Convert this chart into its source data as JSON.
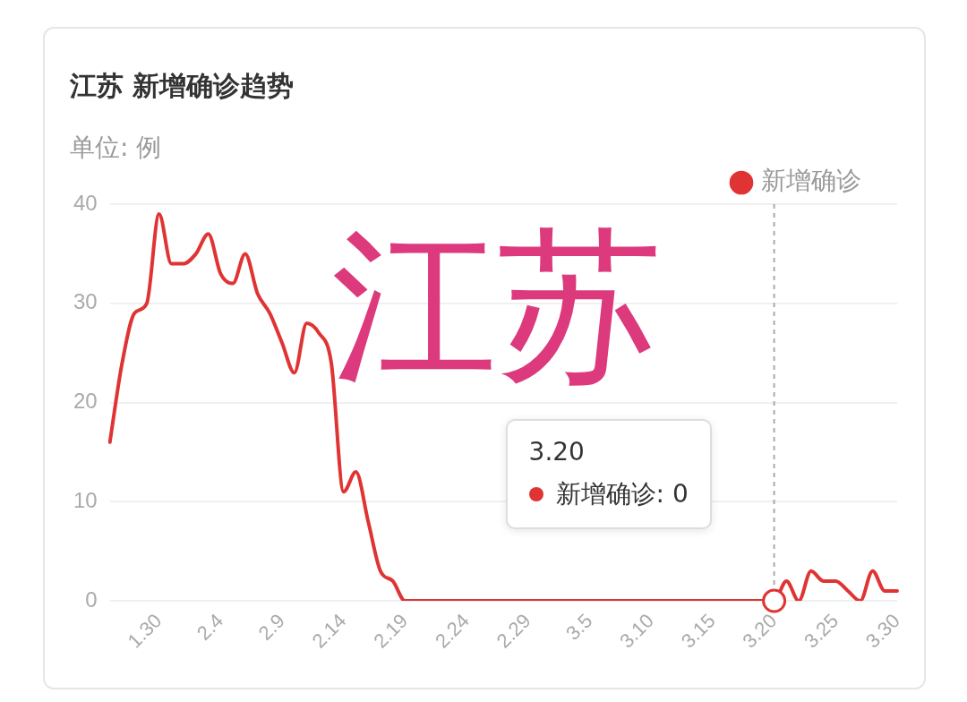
{
  "chart_data": {
    "type": "line",
    "title": "江苏 新增确诊趋势",
    "subtitle": "单位: 例",
    "categories": [
      null,
      null,
      null,
      null,
      "1.30",
      null,
      null,
      null,
      null,
      "2.4",
      null,
      null,
      null,
      null,
      "2.9",
      null,
      null,
      null,
      null,
      "2.14",
      null,
      null,
      null,
      null,
      "2.19",
      null,
      null,
      null,
      null,
      "2.24",
      null,
      null,
      null,
      null,
      "2.29",
      null,
      null,
      null,
      null,
      "3.5",
      null,
      null,
      null,
      null,
      "3.10",
      null,
      null,
      null,
      null,
      "3.15",
      null,
      null,
      null,
      null,
      "3.20",
      null,
      null,
      null,
      null,
      "3.25",
      null,
      null,
      null,
      null,
      "3.30"
    ],
    "series": [
      {
        "name": "新增确诊",
        "color": "#e03434",
        "values": [
          16,
          24,
          29,
          30,
          39,
          34,
          34,
          35,
          37,
          33,
          32,
          35,
          31,
          29,
          26,
          23,
          28,
          27,
          24,
          11,
          13,
          8,
          3,
          2,
          0,
          0,
          0,
          0,
          0,
          0,
          0,
          0,
          0,
          0,
          0,
          0,
          0,
          0,
          0,
          0,
          0,
          0,
          0,
          0,
          0,
          0,
          0,
          0,
          0,
          0,
          0,
          0,
          0,
          0,
          0,
          2,
          0,
          3,
          2,
          2,
          1,
          0,
          3,
          1,
          1
        ]
      }
    ],
    "ylim": [
      0,
      40
    ],
    "yticks": [
      0,
      10,
      20,
      30,
      40
    ],
    "grid": "y",
    "legend": "top right",
    "marker": "none",
    "line_style": "solid",
    "ref_lines": [
      {
        "axis": "x",
        "value": "3.20",
        "color": "#aaaaaa",
        "line_style": "dashed"
      }
    ],
    "annotations": [
      "江苏",
      "3.20\n新增确诊: 0"
    ]
  }
}
